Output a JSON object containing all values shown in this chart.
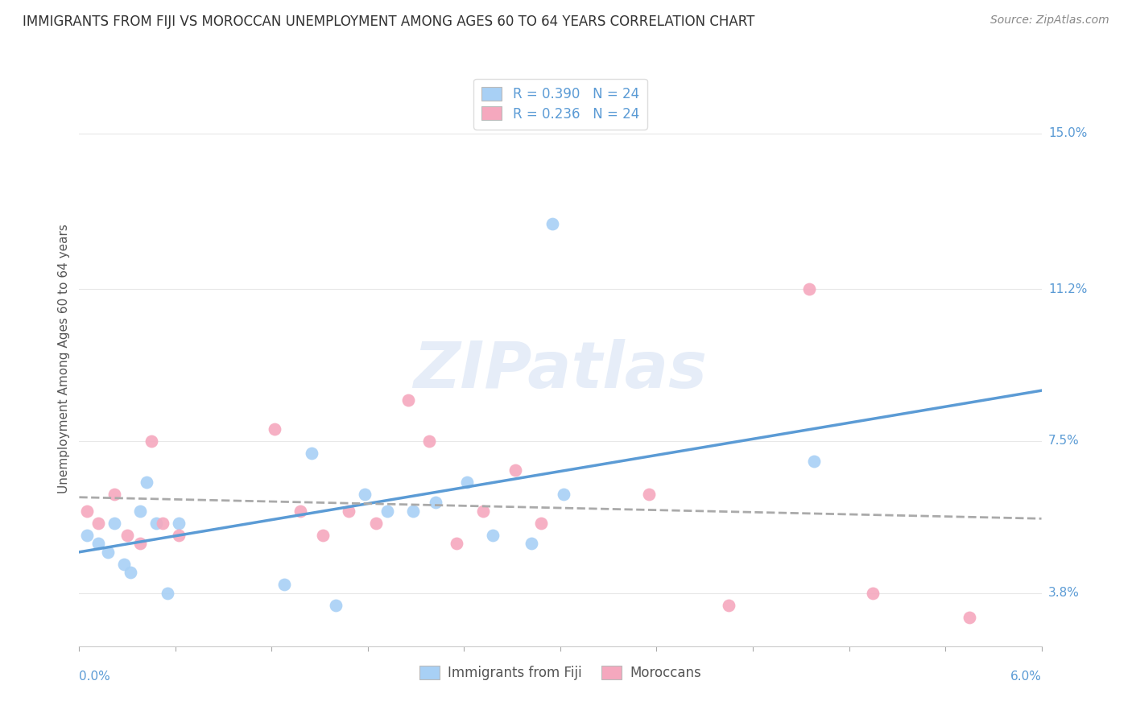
{
  "title": "IMMIGRANTS FROM FIJI VS MOROCCAN UNEMPLOYMENT AMONG AGES 60 TO 64 YEARS CORRELATION CHART",
  "source": "Source: ZipAtlas.com",
  "ylabel": "Unemployment Among Ages 60 to 64 years",
  "ytick_labels": [
    "3.8%",
    "7.5%",
    "11.2%",
    "15.0%"
  ],
  "ytick_values": [
    3.8,
    7.5,
    11.2,
    15.0
  ],
  "xlim": [
    0.0,
    6.0
  ],
  "ylim": [
    2.5,
    16.5
  ],
  "fiji_color": "#A8D0F5",
  "moroccan_color": "#F5A8BE",
  "fiji_line_color": "#5B9BD5",
  "moroccan_line_color": "#F06090",
  "trend_line_color": "#AAAAAA",
  "fiji_scatter_x": [
    0.05,
    0.12,
    0.18,
    0.22,
    0.28,
    0.32,
    0.38,
    0.42,
    0.48,
    0.55,
    0.62,
    1.28,
    1.45,
    1.6,
    1.78,
    1.92,
    2.08,
    2.22,
    2.42,
    2.58,
    2.82,
    3.02,
    2.95,
    4.58
  ],
  "fiji_scatter_y": [
    5.2,
    5.0,
    4.8,
    5.5,
    4.5,
    4.3,
    5.8,
    6.5,
    5.5,
    3.8,
    5.5,
    4.0,
    7.2,
    3.5,
    6.2,
    5.8,
    5.8,
    6.0,
    6.5,
    5.2,
    5.0,
    6.2,
    12.8,
    7.0
  ],
  "moroccan_scatter_x": [
    0.05,
    0.12,
    0.22,
    0.3,
    0.38,
    0.45,
    0.52,
    0.62,
    1.22,
    1.38,
    1.52,
    1.68,
    1.85,
    2.05,
    2.18,
    2.35,
    2.52,
    2.72,
    2.88,
    3.55,
    4.05,
    4.55,
    4.95,
    5.55
  ],
  "moroccan_scatter_y": [
    5.8,
    5.5,
    6.2,
    5.2,
    5.0,
    7.5,
    5.5,
    5.2,
    7.8,
    5.8,
    5.2,
    5.8,
    5.5,
    8.5,
    7.5,
    5.0,
    5.8,
    6.8,
    5.5,
    6.2,
    3.5,
    11.2,
    3.8,
    3.2
  ],
  "r_fiji": "0.390",
  "n_fiji": "24",
  "r_moroccan": "0.236",
  "n_moroccan": "24",
  "watermark": "ZIPatlas",
  "background_color": "#FFFFFF",
  "grid_color": "#E8E8E8",
  "label_fiji": "Immigrants from Fiji",
  "label_moroccan": "Moroccans"
}
